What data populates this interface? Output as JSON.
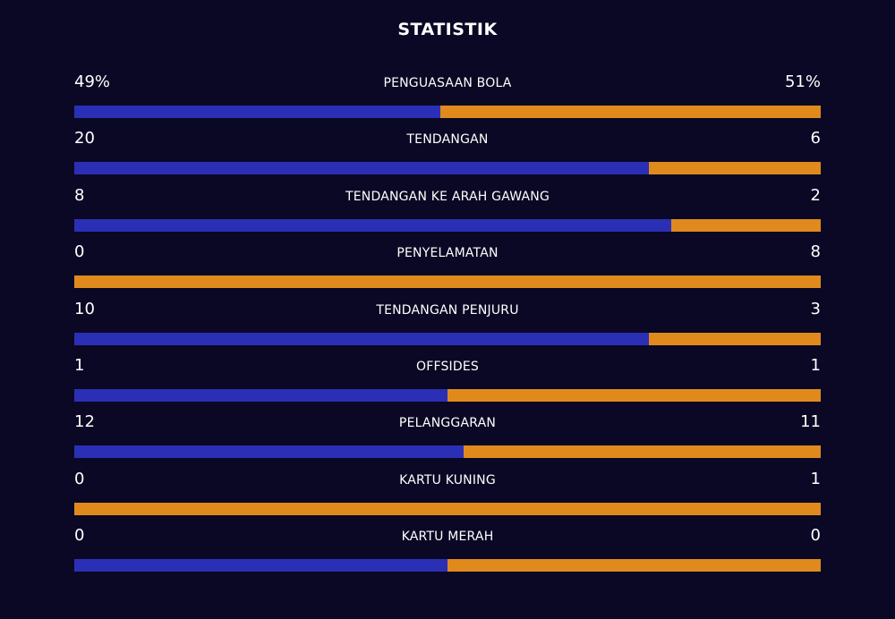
{
  "title": "STATISTIK",
  "colors": {
    "background": "#0a0824",
    "home": "#2b2fb5",
    "away": "#e08a1e"
  },
  "stats": [
    {
      "label": "PENGUASAAN BOLA",
      "home": "49%",
      "away": "51%",
      "home_share": 0.49
    },
    {
      "label": "TENDANGAN",
      "home": "20",
      "away": "6",
      "home_share": 0.7692
    },
    {
      "label": "TENDANGAN KE ARAH GAWANG",
      "home": "8",
      "away": "2",
      "home_share": 0.8
    },
    {
      "label": "PENYELAMATAN",
      "home": "0",
      "away": "8",
      "home_share": 0
    },
    {
      "label": "TENDANGAN PENJURU",
      "home": "10",
      "away": "3",
      "home_share": 0.7692
    },
    {
      "label": "OFFSIDES",
      "home": "1",
      "away": "1",
      "home_share": 0.5
    },
    {
      "label": "PELANGGARAN",
      "home": "12",
      "away": "11",
      "home_share": 0.5217
    },
    {
      "label": "KARTU KUNING",
      "home": "0",
      "away": "1",
      "home_share": 0
    },
    {
      "label": "KARTU MERAH",
      "home": "0",
      "away": "0",
      "home_share": 0.5
    }
  ]
}
